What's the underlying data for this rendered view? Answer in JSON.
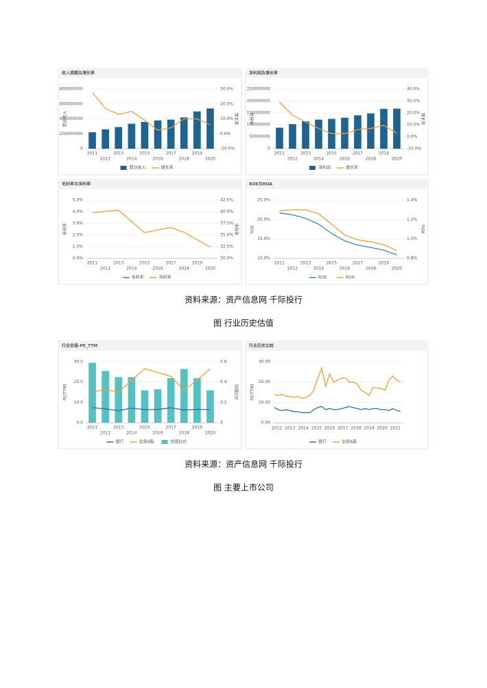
{
  "chart_data": [
    {
      "type": "combo",
      "title": "收入规模及增长率",
      "ylabel": "营业收入",
      "y2label": "增长率",
      "legend": "bottom",
      "categories": [
        "2011",
        "2012",
        "2013",
        "2014",
        "2015",
        "2016",
        "2017",
        "2018",
        "2019",
        "2020"
      ],
      "series": [
        {
          "name": "营业收入",
          "type": "bar",
          "color": "#1f6391",
          "values": [
            220000000,
            260000000,
            290000000,
            335000000,
            360000000,
            380000000,
            390000000,
            420000000,
            500000000,
            540000000
          ]
        },
        {
          "name": "增长率",
          "type": "line",
          "axis": "y2",
          "color": "#f39c3a",
          "values": [
            27.7,
            17,
            13,
            15,
            9,
            2.4,
            4,
            10,
            10,
            6
          ]
        }
      ],
      "ylim": [
        0,
        800000000
      ],
      "yticks": [
        0,
        200000000,
        400000000,
        600000000,
        800000000
      ],
      "y2lim": [
        -10,
        30
      ],
      "y2ticks": [
        {
          "value": -10,
          "label": "-10.0%"
        },
        {
          "value": 0,
          "label": "0.0%"
        },
        {
          "value": 10,
          "label": "10.0%"
        },
        {
          "value": 20,
          "label": "20.0%"
        },
        {
          "value": 30,
          "label": "30.0%"
        }
      ]
    },
    {
      "type": "combo",
      "title": "净利润及增长率",
      "ylabel": "净利润",
      "y2label": "增长率",
      "legend": "bottom",
      "categories": [
        "2011",
        "2012",
        "2013",
        "2014",
        "2015",
        "2016",
        "2017",
        "2018",
        "2019",
        "2020"
      ],
      "series": [
        {
          "name": "净利润",
          "type": "bar",
          "color": "#1f6391",
          "values": [
            88000000,
            103000000,
            115000000,
            122000000,
            125000000,
            130000000,
            140000000,
            148000000,
            167000000,
            168000000
          ]
        },
        {
          "name": "增长率",
          "type": "line",
          "axis": "y2",
          "color": "#f39c3a",
          "values": [
            29,
            18,
            12.4,
            7,
            2.6,
            2.6,
            6,
            7,
            9.5,
            3
          ]
        }
      ],
      "ylim": [
        0,
        250000000
      ],
      "yticks": [
        0,
        50000000,
        100000000,
        150000000,
        200000000,
        250000000
      ],
      "y2lim": [
        -10,
        40
      ],
      "y2ticks": [
        {
          "value": -10,
          "label": "-10.0%"
        },
        {
          "value": 0,
          "label": "0.0%"
        },
        {
          "value": 10,
          "label": "10.0%"
        },
        {
          "value": 20,
          "label": "20.0%"
        },
        {
          "value": 30,
          "label": "30.0%"
        },
        {
          "value": 40,
          "label": "40.0%"
        }
      ]
    },
    {
      "type": "line",
      "title": "毛利率与净利率",
      "ylabel": "毛利率",
      "y2label": "净利率",
      "legend": "bottom",
      "categories": [
        "2011",
        "2012",
        "2013",
        "2014",
        "2015",
        "2016",
        "2017",
        "2018",
        "2019",
        "2020"
      ],
      "series": [
        {
          "name": "毛利率",
          "type": "line",
          "color": "#3a86b5",
          "values": [
            null,
            null,
            null,
            null,
            null,
            null,
            null,
            null,
            null,
            null
          ]
        },
        {
          "name": "净利率",
          "type": "line",
          "axis": "y2",
          "color": "#f39c3a",
          "values": [
            39.8,
            40.1,
            40.3,
            37.9,
            35.5,
            36.1,
            36.6,
            35.6,
            34.0,
            32.4
          ]
        }
      ],
      "ylim": [
        0,
        5
      ],
      "yticks": [
        {
          "value": 0,
          "label": "0.0%"
        },
        {
          "value": 1,
          "label": "1.0%"
        },
        {
          "value": 2,
          "label": "2.0%"
        },
        {
          "value": 3,
          "label": "3.0%"
        },
        {
          "value": 4,
          "label": "4.0%"
        },
        {
          "value": 5,
          "label": "5.0%"
        }
      ],
      "y2lim": [
        30,
        42.5
      ],
      "y2ticks": [
        {
          "value": 30,
          "label": "30.0%"
        },
        {
          "value": 32.5,
          "label": "32.5%"
        },
        {
          "value": 35,
          "label": "35.0%"
        },
        {
          "value": 37.5,
          "label": "37.5%"
        },
        {
          "value": 40,
          "label": "40.0%"
        },
        {
          "value": 42.5,
          "label": "42.5%"
        }
      ]
    },
    {
      "type": "line",
      "title": "ROE与ROA",
      "ylabel": "ROE",
      "y2label": "ROA",
      "legend": "bottom",
      "categories": [
        "2011",
        "2012",
        "2013",
        "2014",
        "2015",
        "2016",
        "2017",
        "2018",
        "2019",
        "2020"
      ],
      "series": [
        {
          "name": "ROE",
          "type": "line",
          "color": "#3a86b5",
          "values": [
            21.7,
            21.2,
            20.3,
            18.8,
            16.4,
            14.5,
            13.4,
            12.8,
            12.1,
            10.9
          ]
        },
        {
          "name": "ROA",
          "type": "line",
          "axis": "y2",
          "color": "#f39c3a",
          "values": [
            1.29,
            1.3,
            1.3,
            1.26,
            1.15,
            1.04,
            0.99,
            0.97,
            0.94,
            0.88
          ]
        }
      ],
      "ylim": [
        10,
        25
      ],
      "yticks": [
        {
          "value": 10,
          "label": "10.0%"
        },
        {
          "value": 15,
          "label": "15.0%"
        },
        {
          "value": 20,
          "label": "20.0%"
        },
        {
          "value": 25,
          "label": "25.0%"
        }
      ],
      "y2lim": [
        0.8,
        1.4
      ],
      "y2ticks": [
        {
          "value": 0.8,
          "label": "0.8%"
        },
        {
          "value": 1.0,
          "label": "1.0%"
        },
        {
          "value": 1.2,
          "label": "1.2%"
        },
        {
          "value": 1.4,
          "label": "1.4%"
        }
      ]
    },
    {
      "type": "combo",
      "title": "行业估值-PE_TTM",
      "ylabel": "PE(TTM)",
      "y2label": "估值比价",
      "legend": "bottom",
      "categories": [
        "2011",
        "2012",
        "2013",
        "2014",
        "2015",
        "2016",
        "2017",
        "2018",
        "2019",
        "2020"
      ],
      "series": [
        {
          "name": "银行",
          "type": "line",
          "color": "#2f6f9f",
          "values": [
            7.5,
            6.8,
            6.0,
            7.2,
            6.5,
            6.6,
            7.4,
            6.3,
            6.6,
            6.5
          ]
        },
        {
          "name": "全部A股",
          "type": "line",
          "color": "#f39c3a",
          "values": [
            15.2,
            16.3,
            15.2,
            21,
            26.6,
            24.7,
            22.8,
            16,
            21,
            26.6
          ]
        },
        {
          "name": "估值比价",
          "type": "bar",
          "axis": "y2",
          "color": "#56c1c1",
          "values": [
            0.59,
            0.51,
            0.45,
            0.45,
            0.32,
            0.33,
            0.44,
            0.53,
            0.44,
            0.32
          ]
        }
      ],
      "ylim": [
        0,
        30
      ],
      "yticks": [
        {
          "value": 0,
          "label": "0.0"
        },
        {
          "value": 10,
          "label": "10.0"
        },
        {
          "value": 20,
          "label": "20.0"
        },
        {
          "value": 30,
          "label": "30.0"
        }
      ],
      "y2lim": [
        0,
        0.6
      ],
      "y2ticks": [
        0,
        0.2,
        0.4,
        0.6
      ]
    },
    {
      "type": "line",
      "title": "行业历史比较",
      "ylabel": "PE(TTM)",
      "legend": "bottom",
      "x": [
        2011.8,
        2012.1,
        2012.4,
        2012.7,
        2013.0,
        2013.3,
        2013.6,
        2013.9,
        2014.2,
        2014.5,
        2014.8,
        2015.1,
        2015.4,
        2015.7,
        2016.0,
        2016.3,
        2016.6,
        2016.9,
        2017.2,
        2017.5,
        2017.8,
        2018.1,
        2018.4,
        2018.7,
        2019.0,
        2019.3,
        2019.6,
        2019.9,
        2020.2,
        2020.5,
        2020.8,
        2021.1,
        2021.4
      ],
      "xlim": [
        2011.7,
        2021.6
      ],
      "xticks": [
        2012,
        2013,
        2014,
        2015,
        2016,
        2017,
        2018,
        2019,
        2020,
        2021
      ],
      "series": [
        {
          "name": "银行",
          "type": "line",
          "color": "#2f6f9f",
          "values": [
            7.5,
            6.5,
            6,
            6.5,
            6,
            5.5,
            5.5,
            5,
            5,
            5,
            6.5,
            7.5,
            8,
            6.5,
            7,
            6.5,
            6.5,
            7,
            7.5,
            8,
            7.5,
            7,
            6.5,
            7,
            6.5,
            7,
            7,
            6.5,
            6.5,
            6,
            7,
            6,
            5.5
          ]
        },
        {
          "name": "全部A股",
          "type": "line",
          "color": "#f39c3a",
          "values": [
            14,
            13.5,
            14,
            13,
            13,
            12.5,
            13,
            12,
            12.5,
            13.5,
            16,
            22,
            27,
            18,
            24,
            20,
            21,
            22,
            22,
            20,
            20,
            19,
            16,
            15,
            13.5,
            17.5,
            17,
            17,
            16,
            21,
            23,
            21,
            20
          ]
        }
      ],
      "ylim": [
        0,
        30
      ],
      "yticks": [
        {
          "value": 0,
          "label": "0.00"
        },
        {
          "value": 10,
          "label": "10.00"
        },
        {
          "value": 20,
          "label": "20.00"
        },
        {
          "value": 30,
          "label": "30.00"
        }
      ]
    }
  ],
  "captions": [
    "资料来源：资产信息网 千际投行",
    "图 行业历史估值",
    "资料来源：资产信息网 千际投行",
    "图 主要上市公司"
  ]
}
